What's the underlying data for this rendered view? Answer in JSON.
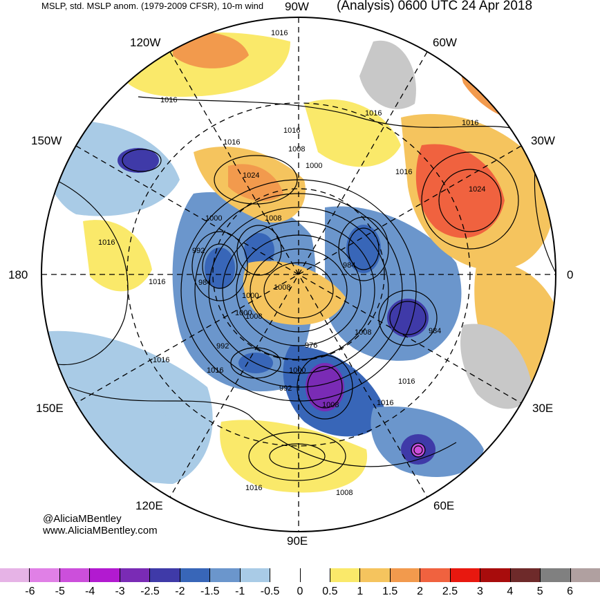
{
  "header": {
    "left": "MSLP, std. MSLP anom. (1979-2009 CFSR), 10-m wind",
    "right": "(Analysis) 0600 UTC 24 Apr 2018"
  },
  "longitude_labels": {
    "w90": "90W",
    "w60": "60W",
    "w30": "30W",
    "w120": "120W",
    "w150": "150W",
    "lon180": "180",
    "lon0": "0",
    "e150": "150E",
    "e30": "30E",
    "e120": "120E",
    "e60": "60E",
    "e90": "90E"
  },
  "isobar_labels": [
    "1016",
    "1016",
    "1016",
    "1016",
    "1016",
    "1016",
    "1008",
    "1000",
    "1024",
    "1024",
    "1016",
    "1000",
    "1008",
    "992",
    "984",
    "984",
    "1016",
    "1016",
    "1008",
    "1000",
    "1000",
    "1008",
    "992",
    "976",
    "1008",
    "984",
    "1000",
    "992",
    "1008",
    "1016",
    "1016",
    "1016",
    "1016",
    "1016",
    "1008"
  ],
  "credits": {
    "handle": "@AliciaMBentley",
    "site": "www.AliciaMBentley.com"
  },
  "colorbar": {
    "colors": [
      "#e6b3e6",
      "#e080e6",
      "#cc4fdb",
      "#b21ad0",
      "#7a2bb5",
      "#3f3aa8",
      "#3866b8",
      "#6b96cc",
      "#a9cbe6",
      "#ffffff",
      "#ffffff",
      "#fae96a",
      "#f5c45e",
      "#f29a4d",
      "#f0623f",
      "#e8180f",
      "#a80c0c",
      "#6e2a2a",
      "#808080",
      "#b0a0a0"
    ],
    "ticks": [
      "-6",
      "-5",
      "-4",
      "-3",
      "-2.5",
      "-2",
      "-1.5",
      "-1",
      "-0.5",
      "0",
      "0.5",
      "1",
      "1.5",
      "2",
      "2.5",
      "3",
      "4",
      "5",
      "6"
    ]
  },
  "map_colors": {
    "land": "#c8c8c8",
    "positive_1": "#fae96a",
    "positive_2": "#f5c45e",
    "positive_3": "#f29a4d",
    "positive_4": "#f0623f",
    "negative_1": "#a9cbe6",
    "negative_2": "#6b96cc",
    "negative_3": "#3866b8",
    "negative_4": "#3f3aa8",
    "negative_5": "#7a2bb5",
    "negative_6": "#cc4fdb"
  }
}
